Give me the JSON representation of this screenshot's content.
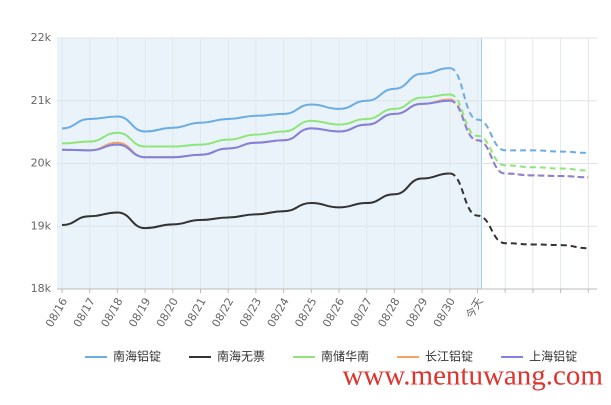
{
  "chart_data": {
    "type": "line",
    "categories": [
      "08/16",
      "08/17",
      "08/18",
      "08/19",
      "08/20",
      "08/21",
      "08/22",
      "08/23",
      "08/24",
      "08/25",
      "08/26",
      "08/27",
      "08/28",
      "08/29",
      "08/30",
      "今天",
      null,
      null,
      null,
      null
    ],
    "series": [
      {
        "name": "南海铝锭",
        "color": "#6aade4",
        "values": [
          20560,
          20710,
          20750,
          20510,
          20570,
          20650,
          20710,
          20760,
          20790,
          20940,
          20870,
          21000,
          21190,
          21430,
          21520,
          20700,
          20210,
          20210,
          20190,
          20170
        ]
      },
      {
        "name": "南海无票",
        "color": "#333333",
        "values": [
          19020,
          19160,
          19220,
          18970,
          19030,
          19100,
          19140,
          19190,
          19240,
          19370,
          19300,
          19370,
          19510,
          19760,
          19840,
          19170,
          18730,
          18710,
          18700,
          18650
        ]
      },
      {
        "name": "南储华南",
        "color": "#8ee67a",
        "values": [
          20320,
          20350,
          20490,
          20270,
          20270,
          20300,
          20380,
          20460,
          20510,
          20680,
          20620,
          20710,
          20870,
          21050,
          21100,
          20440,
          19970,
          19940,
          19920,
          19890
        ]
      },
      {
        "name": "长江铝锭",
        "color": "#f4a261",
        "values": [
          20220,
          20210,
          20330,
          20100,
          20100,
          20140,
          20240,
          20330,
          20370,
          20560,
          20510,
          20620,
          20790,
          20950,
          21020,
          20370,
          19840,
          19810,
          19800,
          19780
        ]
      },
      {
        "name": "上海铝锭",
        "color": "#8080e0",
        "values": [
          20220,
          20210,
          20300,
          20100,
          20100,
          20140,
          20240,
          20330,
          20370,
          20560,
          20510,
          20620,
          20790,
          20950,
          21000,
          20370,
          19840,
          19810,
          19800,
          19780
        ]
      }
    ],
    "ylim": [
      18000,
      22000
    ],
    "yticks": [
      {
        "value": 18000,
        "label": "18k"
      },
      {
        "value": 19000,
        "label": "19k"
      },
      {
        "value": 20000,
        "label": "20k"
      },
      {
        "value": 21000,
        "label": "21k"
      },
      {
        "value": 22000,
        "label": "22k"
      }
    ],
    "grid": true,
    "dashed_from_index": 14,
    "legend": "bottom",
    "watermark": "www.mentuwang.com"
  }
}
